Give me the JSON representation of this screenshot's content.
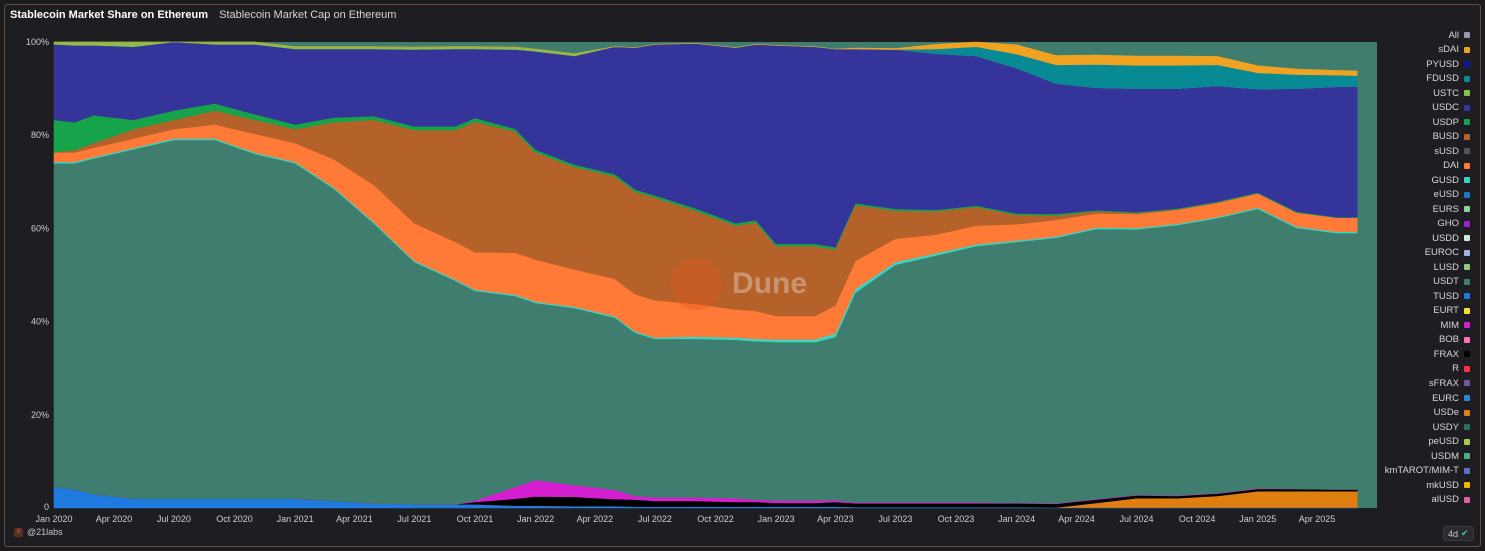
{
  "header": {
    "active_tab": "Stablecoin Market Share on Ethereum",
    "tab": "Stablecoin Market Cap on Ethereum"
  },
  "footer": {
    "author": "@21labs",
    "age": "4d"
  },
  "watermark": "Dune",
  "colors": {
    "USDT": "#3f7d6e",
    "DAI": "#ff7a36",
    "BUSD": "#b5622a",
    "USDC": "#34349a",
    "USDP": "#16a34a",
    "FDUSD": "#078a93",
    "sDAI": "#f0a221",
    "USDe": "#e07f10",
    "FRAX": "#000000",
    "MIM": "#d41fd0",
    "TUSD": "#1f7ae0",
    "USDM": "#4fb089",
    "GUSD": "#39d4c2",
    "LUSD": "#8fc878",
    "EURS": "#8fd0a0",
    "USTC": "#8ac04a",
    "sFRAX": "#6a5aa0",
    "mkUSD": "#f5b400"
  },
  "chart_data": {
    "type": "area",
    "stacked": true,
    "normalized": true,
    "title": "Stablecoin Market Share on Ethereum",
    "ylim": [
      0,
      100
    ],
    "y_ticks": [
      "0",
      "20%",
      "40%",
      "60%",
      "80%",
      "100%"
    ],
    "x_ticks": [
      "Jan 2020",
      "Apr 2020",
      "Jul 2020",
      "Oct 2020",
      "Jan 2021",
      "Apr 2021",
      "Jul 2021",
      "Oct 2021",
      "Jan 2022",
      "Apr 2022",
      "Jul 2022",
      "Oct 2022",
      "Jan 2023",
      "Apr 2023",
      "Jul 2023",
      "Oct 2023",
      "Jan 2024",
      "Apr 2024",
      "Jul 2024",
      "Oct 2024",
      "Jan 2025",
      "Apr 2025"
    ],
    "x": [
      "2020-01",
      "2020-02",
      "2020-03",
      "2020-05",
      "2020-07",
      "2020-09",
      "2020-11",
      "2021-01",
      "2021-03",
      "2021-05",
      "2021-07",
      "2021-09",
      "2021-10",
      "2021-12",
      "2022-01",
      "2022-03",
      "2022-05",
      "2022-06",
      "2022-07",
      "2022-09",
      "2022-11",
      "2022-12",
      "2023-01",
      "2023-03",
      "2023-04",
      "2023-05",
      "2023-07",
      "2023-09",
      "2023-11",
      "2024-01",
      "2024-03",
      "2024-05",
      "2024-07",
      "2024-09",
      "2024-11",
      "2025-01",
      "2025-03",
      "2025-05",
      "2025-06"
    ],
    "series": [
      {
        "name": "TUSD",
        "values": [
          4.5,
          4,
          3,
          2,
          2,
          2,
          2,
          2,
          1.5,
          1,
          0.8,
          0.8,
          0.8,
          0.5,
          0.5,
          0.4,
          0.4,
          0.3,
          0.3,
          0.3,
          0.3,
          0.3,
          0.3,
          0.3,
          0.3,
          0.2,
          0.2,
          0.2,
          0.2,
          0.2,
          0.1,
          0.1,
          0.1,
          0.1,
          0.1,
          0.1,
          0.1,
          0.1,
          0.1
        ]
      },
      {
        "name": "sFRAX",
        "values": [
          0,
          0,
          0,
          0,
          0,
          0,
          0,
          0,
          0,
          0,
          0,
          0,
          0,
          0,
          0,
          0,
          0,
          0,
          0,
          0,
          0,
          0,
          0,
          0,
          0,
          0,
          0,
          0,
          0,
          0,
          0,
          0,
          0,
          0,
          0,
          0,
          0,
          0,
          0
        ]
      },
      {
        "name": "USDe",
        "values": [
          0,
          0,
          0,
          0,
          0,
          0,
          0,
          0,
          0,
          0,
          0,
          0,
          0,
          0,
          0,
          0,
          0,
          0,
          0,
          0,
          0,
          0,
          0,
          0,
          0,
          0,
          0,
          0,
          0,
          0,
          0,
          1,
          2,
          2,
          2.5,
          3.5,
          3.5,
          3.5,
          3.5
        ]
      },
      {
        "name": "FRAX",
        "values": [
          0,
          0,
          0,
          0,
          0,
          0,
          0,
          0,
          0,
          0,
          0,
          0,
          0.5,
          1.5,
          2,
          2,
          1.5,
          1.5,
          1.2,
          1.2,
          1.0,
          1.0,
          0.8,
          0.8,
          1.0,
          0.8,
          0.8,
          0.8,
          0.8,
          0.8,
          0.8,
          0.7,
          0.6,
          0.5,
          0.5,
          0.5,
          0.5,
          0.4,
          0.4
        ]
      },
      {
        "name": "MIM",
        "values": [
          0,
          0,
          0,
          0,
          0,
          0,
          0,
          0,
          0,
          0,
          0,
          0,
          0.3,
          2.5,
          3.5,
          2.5,
          2,
          0.8,
          0.8,
          0.8,
          0.8,
          0.5,
          0.5,
          0.5,
          0.4,
          0.2,
          0.2,
          0.2,
          0.2,
          0.1,
          0.1,
          0.1,
          0.1,
          0.1,
          0.1,
          0.1,
          0,
          0,
          0
        ]
      },
      {
        "name": "USDT",
        "values": [
          69.5,
          70,
          72,
          75,
          77,
          77,
          74,
          72,
          67,
          60,
          52,
          48,
          45,
          41,
          38,
          38,
          37,
          35,
          34,
          34,
          34,
          34,
          34,
          34,
          35,
          45,
          51,
          53,
          55,
          56,
          57,
          58,
          57,
          58,
          59,
          60,
          56,
          55,
          55
        ]
      },
      {
        "name": "GUSD",
        "values": [
          0.3,
          0.3,
          0.3,
          0.3,
          0.3,
          0.3,
          0.3,
          0.3,
          0.3,
          0.3,
          0.3,
          0.3,
          0.3,
          0.3,
          0.3,
          0.3,
          0.3,
          0.3,
          0.3,
          0.5,
          0.5,
          0.5,
          0.6,
          0.6,
          0.8,
          0.8,
          0.6,
          0.5,
          0.4,
          0.3,
          0.3,
          0.3,
          0.3,
          0.3,
          0.3,
          0.3,
          0.3,
          0.3,
          0.3
        ]
      },
      {
        "name": "DAI",
        "values": [
          2,
          2,
          2,
          2,
          2,
          3,
          4,
          4,
          6,
          8,
          8,
          8,
          8,
          9,
          9,
          8,
          8,
          8,
          8,
          7,
          6,
          6,
          5,
          5,
          6,
          6,
          5,
          4,
          4,
          3.5,
          3.5,
          3,
          3,
          3,
          3,
          3,
          3,
          3,
          3
        ]
      },
      {
        "name": "BUSD",
        "values": [
          0,
          0.5,
          1,
          2,
          2,
          3,
          3,
          3,
          8,
          14,
          20,
          24,
          28,
          26,
          23,
          22,
          22,
          22,
          22,
          20,
          18,
          19,
          15,
          15,
          12,
          12,
          6,
          5,
          4,
          2,
          1,
          0.5,
          0.2,
          0.1,
          0.1,
          0,
          0,
          0,
          0
        ]
      },
      {
        "name": "USDP",
        "values": [
          7,
          6,
          6,
          2,
          2,
          1.5,
          1.2,
          1,
          1,
          0.8,
          0.8,
          0.8,
          0.8,
          0.6,
          0.6,
          0.5,
          0.5,
          0.5,
          0.5,
          0.5,
          0.5,
          0.5,
          0.5,
          0.5,
          0.5,
          0.4,
          0.4,
          0.3,
          0.3,
          0.3,
          0.3,
          0.2,
          0.2,
          0.2,
          0.2,
          0.2,
          0.2,
          0.1,
          0.1
        ]
      },
      {
        "name": "USDC",
        "values": [
          16.2,
          16.5,
          15,
          15.7,
          14.7,
          12.7,
          15,
          16.2,
          14.7,
          14.4,
          16.5,
          16.6,
          14.8,
          17,
          21.1,
          23.3,
          27.3,
          30.4,
          32.4,
          35.4,
          37.7,
          37.7,
          42.6,
          42.3,
          42.5,
          33.1,
          34.2,
          33.5,
          32.1,
          31.2,
          28,
          26.3,
          26.5,
          25.7,
          24.8,
          22.2,
          26.4,
          28,
          28
        ]
      },
      {
        "name": "USTC",
        "values": [
          0.5,
          0.7,
          0.7,
          1,
          2,
          0.5,
          0.5,
          0.5,
          0.5,
          0.5,
          0.5,
          0.5,
          0.5,
          0.5,
          0.5,
          0.5,
          0,
          0,
          0,
          0,
          0,
          0,
          0,
          0,
          0,
          0,
          0,
          0,
          0,
          0,
          0,
          0,
          0,
          0,
          0,
          0,
          0,
          0,
          0
        ]
      },
      {
        "name": "FDUSD",
        "values": [
          0,
          0,
          0,
          0,
          0,
          0,
          0,
          0,
          0,
          0,
          0,
          0,
          0,
          0,
          0,
          0,
          0,
          0,
          0,
          0,
          0,
          0,
          0,
          0,
          0,
          0,
          0,
          1,
          2,
          3,
          4,
          5,
          5,
          5,
          4.5,
          3.5,
          3,
          2.5,
          2.4
        ]
      },
      {
        "name": "sDAI",
        "values": [
          0,
          0,
          0,
          0,
          0,
          0,
          0,
          0,
          0,
          0,
          0,
          0,
          0,
          0,
          0,
          0,
          0,
          0,
          0,
          0,
          0,
          0,
          0,
          0,
          0,
          0.2,
          0.2,
          1,
          2,
          2,
          2,
          2,
          2,
          2,
          1.8,
          1.5,
          1.2,
          1,
          1
        ]
      }
    ],
    "legend": [
      "All",
      "sDAI",
      "PYUSD",
      "FDUSD",
      "USTC",
      "USDC",
      "USDP",
      "BUSD",
      "sUSD",
      "DAI",
      "GUSD",
      "eUSD",
      "EURS",
      "GHO",
      "USDD",
      "EUROC",
      "LUSD",
      "USDT",
      "TUSD",
      "EURT",
      "MIM",
      "BOB",
      "FRAX",
      "R",
      "sFRAX",
      "EURC",
      "USDe",
      "USDY",
      "peUSD",
      "USDM",
      "kmTAROT/MIM-T",
      "mkUSD",
      "alUSD"
    ],
    "legend_colors": [
      "#9a9aa4",
      "#f0a221",
      "#1414a0",
      "#078a93",
      "#8ac04a",
      "#34349a",
      "#16a34a",
      "#b5622a",
      "#555555",
      "#ff7a36",
      "#39d4c2",
      "#1a78c2",
      "#8fd0a0",
      "#a020d0",
      "#c8ecd8",
      "#a0b4e8",
      "#8fc878",
      "#3f7d6e",
      "#1f7ae0",
      "#f5e13a",
      "#d41fd0",
      "#ff70b0",
      "#000000",
      "#ff3040",
      "#6a5aa0",
      "#2a88d0",
      "#e07f10",
      "#2a6f60",
      "#a4d050",
      "#4fb089",
      "#6070c0",
      "#f5b400",
      "#e060a0"
    ],
    "legend_position": "right"
  }
}
